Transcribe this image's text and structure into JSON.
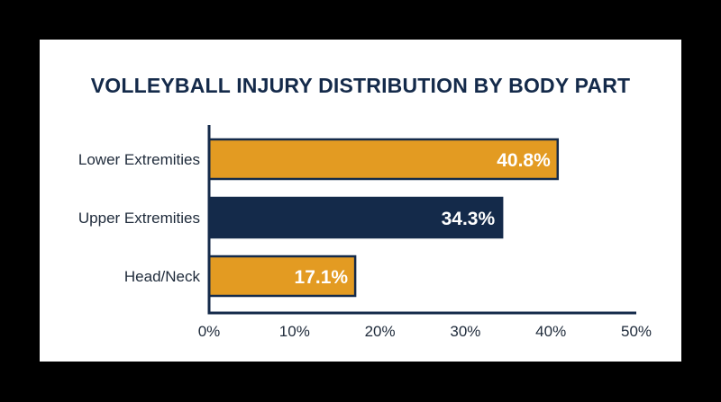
{
  "chart_data": {
    "type": "bar",
    "orientation": "horizontal",
    "title": "VOLLEYBALL INJURY DISTRIBUTION BY BODY PART",
    "categories": [
      "Lower Extremities",
      "Upper Extremities",
      "Head/Neck"
    ],
    "values": [
      40.8,
      34.3,
      17.1
    ],
    "data_labels": [
      "40.8%",
      "34.3%",
      "17.1%"
    ],
    "bar_colors": [
      "#e39b22",
      "#142a4a",
      "#e39b22"
    ],
    "xlim": [
      0,
      50
    ],
    "x_ticks": [
      0,
      10,
      20,
      30,
      40,
      50
    ],
    "x_tick_labels": [
      "0%",
      "10%",
      "20%",
      "30%",
      "40%",
      "50%"
    ],
    "grid": false,
    "legend": "none",
    "axis_color": "#142a4a"
  }
}
